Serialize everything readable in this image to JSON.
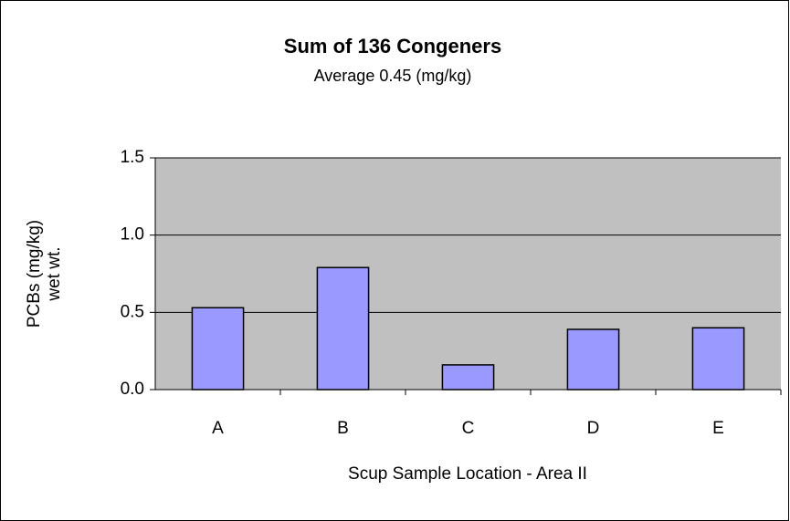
{
  "chart_data": {
    "type": "bar",
    "title": "Sum of 136 Congeners",
    "subtitle": "Average 0.45 (mg/kg)",
    "y_label": [
      "PCBs (mg/kg)",
      "wet wt."
    ],
    "x_label": "Scup Sample Location - Area II",
    "categories": [
      "A",
      "B",
      "C",
      "D",
      "E"
    ],
    "values": [
      0.53,
      0.79,
      0.16,
      0.39,
      0.4
    ],
    "color": "#9999ff",
    "ylim": [
      0,
      1.5
    ],
    "yticks": [
      {
        "value": 0,
        "label": "0.0"
      },
      0.5,
      {
        "value": 1,
        "label": "1.0"
      },
      {
        "value": 1.5,
        "label": "1.5"
      }
    ],
    "grid": true
  }
}
